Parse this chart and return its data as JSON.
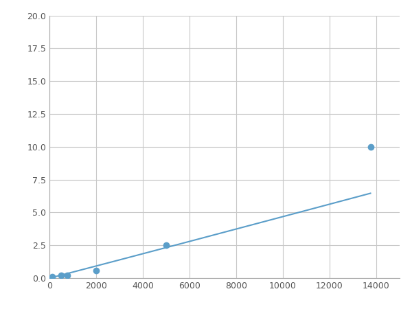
{
  "x": [
    125,
    500,
    750,
    2000,
    5000,
    13750
  ],
  "y": [
    0.1,
    0.2,
    0.2,
    0.6,
    2.5,
    10.0
  ],
  "line_color": "#5b9ec9",
  "marker_color": "#5b9ec9",
  "marker_size": 6,
  "line_width": 1.5,
  "xlim": [
    0,
    15000
  ],
  "ylim": [
    0,
    20
  ],
  "xticks": [
    0,
    2000,
    4000,
    6000,
    8000,
    10000,
    12000,
    14000
  ],
  "yticks": [
    0.0,
    2.5,
    5.0,
    7.5,
    10.0,
    12.5,
    15.0,
    17.5,
    20.0
  ],
  "background_color": "#ffffff",
  "grid_color": "#c8c8c8"
}
